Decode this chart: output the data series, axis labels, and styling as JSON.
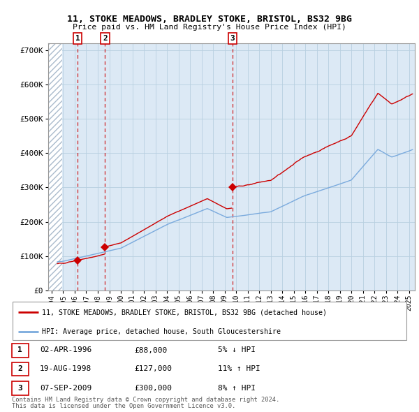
{
  "title_line1": "11, STOKE MEADOWS, BRADLEY STOKE, BRISTOL, BS32 9BG",
  "title_line2": "Price paid vs. HM Land Registry's House Price Index (HPI)",
  "plot_bg_color": "#dce9f5",
  "grid_color": "#b8cfe0",
  "ylim": [
    0,
    720000
  ],
  "yticks": [
    0,
    100000,
    200000,
    300000,
    400000,
    500000,
    600000,
    700000
  ],
  "ytick_labels": [
    "£0",
    "£100K",
    "£200K",
    "£300K",
    "£400K",
    "£500K",
    "£600K",
    "£700K"
  ],
  "sale_dates_year": [
    1996.25,
    1998.63,
    2009.69
  ],
  "sale_prices": [
    88000,
    127000,
    300000
  ],
  "sale_labels": [
    "1",
    "2",
    "3"
  ],
  "red_line_color": "#cc0000",
  "blue_line_color": "#7aaadd",
  "dot_color": "#cc0000",
  "dashed_color": "#cc0000",
  "legend_line1": "11, STOKE MEADOWS, BRADLEY STOKE, BRISTOL, BS32 9BG (detached house)",
  "legend_line2": "HPI: Average price, detached house, South Gloucestershire",
  "table_rows": [
    [
      "1",
      "02-APR-1996",
      "£88,000",
      "5% ↓ HPI"
    ],
    [
      "2",
      "19-AUG-1998",
      "£127,000",
      "11% ↑ HPI"
    ],
    [
      "3",
      "07-SEP-2009",
      "£300,000",
      "8% ↑ HPI"
    ]
  ],
  "footnote1": "Contains HM Land Registry data © Crown copyright and database right 2024.",
  "footnote2": "This data is licensed under the Open Government Licence v3.0.",
  "xlim_start": 1993.7,
  "xlim_end": 2025.5
}
